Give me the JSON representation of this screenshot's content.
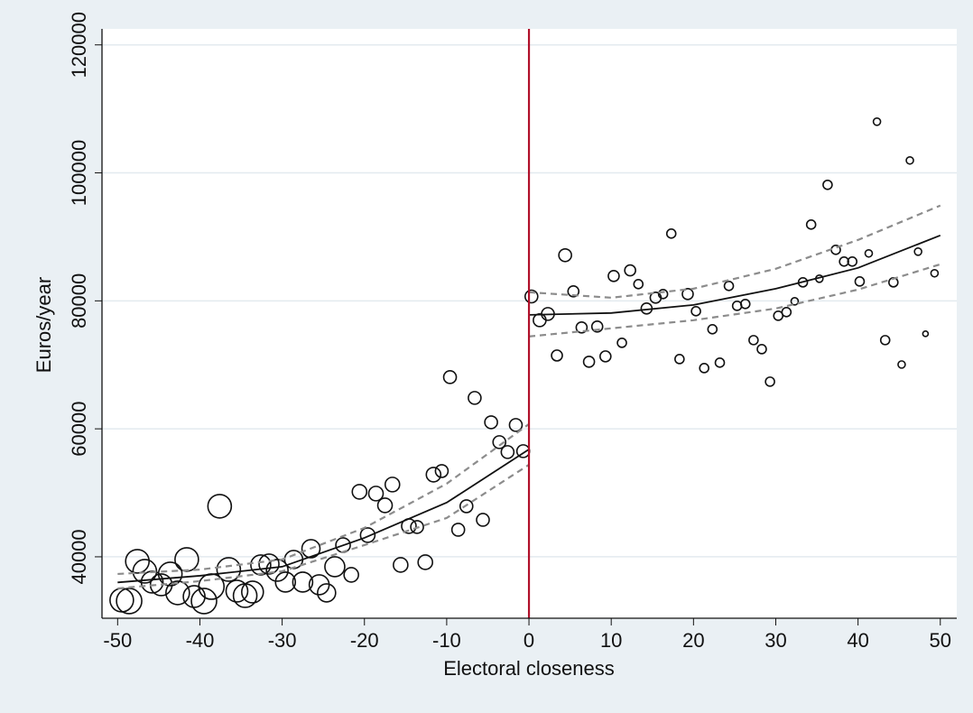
{
  "chart_data": {
    "type": "scatter",
    "x_label": "Electoral closeness",
    "y_label": "Euros/year",
    "xlim": [
      -51.9,
      52
    ],
    "ylim": [
      30400,
      122500
    ],
    "xticks": [
      -50,
      -40,
      -30,
      -20,
      -10,
      0,
      10,
      20,
      30,
      40,
      50
    ],
    "yticks": [
      40000,
      60000,
      80000,
      100000,
      120000
    ],
    "grid": true,
    "vline": 0,
    "vline_color": "#b0102a",
    "scatter": {
      "color": "#111111",
      "x": [
        -49.5,
        -48.6,
        -47.6,
        -46.7,
        -45.8,
        -44.7,
        -43.6,
        -42.7,
        -41.6,
        -40.7,
        -39.5,
        -38.6,
        -37.6,
        -36.5,
        -35.5,
        -34.5,
        -33.6,
        -32.6,
        -31.6,
        -30.6,
        -29.6,
        -28.6,
        -27.5,
        -26.5,
        -25.5,
        -24.6,
        -23.6,
        -22.6,
        -21.6,
        -20.6,
        -19.6,
        -18.6,
        -17.5,
        -16.6,
        -15.6,
        -14.6,
        -13.6,
        -12.6,
        -11.6,
        -10.6,
        -9.6,
        -8.6,
        -7.6,
        -6.6,
        -5.6,
        -4.6,
        -3.6,
        -2.6,
        -1.6,
        -0.7,
        0.3,
        1.3,
        2.3,
        3.4,
        4.4,
        5.4,
        6.4,
        7.3,
        8.3,
        9.3,
        10.3,
        11.3,
        12.3,
        13.3,
        14.3,
        15.4,
        16.3,
        17.3,
        18.3,
        19.3,
        20.3,
        21.3,
        22.3,
        23.2,
        24.3,
        25.3,
        26.3,
        27.3,
        28.3,
        29.3,
        30.3,
        31.3,
        32.3,
        33.3,
        34.3,
        35.3,
        36.3,
        37.3,
        38.3,
        39.3,
        40.2,
        41.3,
        42.3,
        43.3,
        44.3,
        45.3,
        46.3,
        47.3,
        48.2,
        49.3
      ],
      "y": [
        33230,
        33090,
        39300,
        37740,
        36050,
        35630,
        37320,
        34360,
        39580,
        33790,
        33090,
        35340,
        47900,
        38020,
        34640,
        33930,
        34500,
        38730,
        38870,
        37880,
        36050,
        39580,
        36050,
        41270,
        35630,
        34360,
        38450,
        41830,
        37180,
        50160,
        43390,
        49880,
        48040,
        51290,
        38730,
        44800,
        44660,
        39150,
        52840,
        53400,
        68080,
        44230,
        47900,
        64830,
        45780,
        61020,
        57920,
        56370,
        60600,
        56510,
        80680,
        76970,
        77950,
        71460,
        87130,
        81480,
        75840,
        70480,
        75980,
        71320,
        83880,
        73440,
        84760,
        82610,
        78800,
        80490,
        81060,
        90510,
        70900,
        81060,
        78380,
        69490,
        75560,
        70340,
        82330,
        79220,
        79510,
        73860,
        72450,
        67370,
        77670,
        78240,
        79930,
        82890,
        91920,
        83460,
        98130,
        87970,
        86140,
        86140,
        83030,
        87410,
        108000,
        73860,
        82890,
        70050,
        101940,
        87690,
        74850,
        84310
      ],
      "sizes": [
        169,
        196,
        169,
        169,
        144,
        144,
        169,
        169,
        169,
        144,
        196,
        196,
        169,
        169,
        144,
        169,
        144,
        121,
        121,
        144,
        121,
        100,
        121,
        100,
        121,
        100,
        121,
        64,
        64,
        64,
        64,
        64,
        64,
        64,
        64,
        64,
        49,
        64,
        64,
        49,
        49,
        49,
        49,
        49,
        49,
        49,
        49,
        49,
        49,
        49,
        49,
        49,
        49,
        36,
        49,
        36,
        36,
        36,
        36,
        36,
        36,
        25,
        36,
        25,
        36,
        36,
        25,
        25,
        25,
        36,
        25,
        25,
        25,
        25,
        25,
        25,
        25,
        25,
        25,
        25,
        25,
        25,
        16,
        25,
        25,
        16,
        25,
        25,
        25,
        25,
        25,
        16,
        16,
        25,
        25,
        16,
        16,
        16,
        9,
        16
      ]
    },
    "lines": [
      {
        "style": "solid",
        "color": "#111111",
        "x": [
          -50,
          -40,
          -30,
          -20,
          -10,
          0
        ],
        "y": [
          36000,
          37040,
          38450,
          42960,
          48470,
          56790
        ]
      },
      {
        "style": "dashed",
        "color": "#8c8c8c",
        "x": [
          -50,
          -40,
          -30,
          -20,
          -10,
          0
        ],
        "y": [
          37320,
          38000,
          39580,
          44520,
          51430,
          60740
        ]
      },
      {
        "style": "dashed",
        "color": "#8c8c8c",
        "x": [
          -50,
          -40,
          -30,
          -20,
          -10,
          0
        ],
        "y": [
          35060,
          36200,
          37740,
          41830,
          46070,
          54390
        ]
      },
      {
        "style": "solid",
        "color": "#111111",
        "x": [
          0,
          10,
          20,
          30,
          40,
          50
        ],
        "y": [
          77810,
          78100,
          79360,
          81900,
          85150,
          90230
        ]
      },
      {
        "style": "dashed",
        "color": "#8c8c8c",
        "x": [
          0,
          10,
          20,
          30,
          40,
          50
        ],
        "y": [
          81340,
          80490,
          81900,
          85010,
          89520,
          94890
        ]
      },
      {
        "style": "dashed",
        "color": "#8c8c8c",
        "x": [
          0,
          10,
          20,
          30,
          40,
          50
        ],
        "y": [
          74430,
          75700,
          76970,
          78800,
          81760,
          85710
        ]
      }
    ]
  }
}
